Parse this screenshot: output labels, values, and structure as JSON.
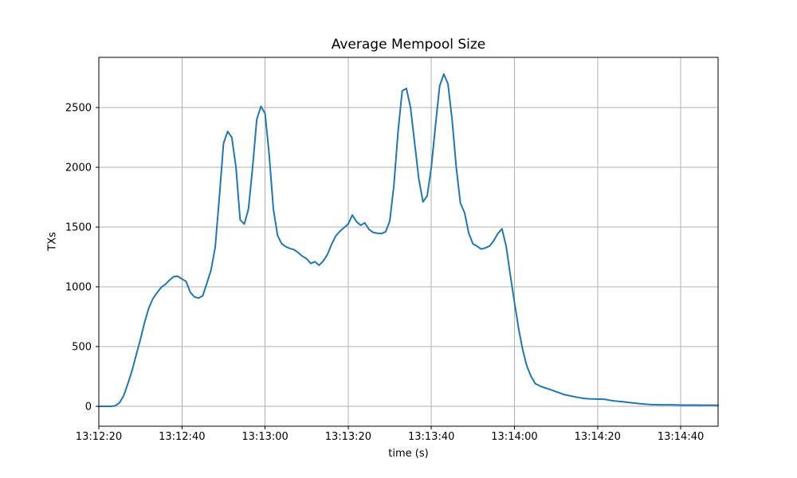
{
  "chart_data": {
    "type": "line",
    "title": "Average Mempool Size",
    "xlabel": "time (s)",
    "ylabel": "TXs",
    "grid": true,
    "legend": "none",
    "line_color": "#1f77b4",
    "grid_color": "#b0b0b0",
    "spine_color": "#000000",
    "x_start_label": "13:12:20",
    "x_interval_seconds": 1,
    "xlim_s": [
      0,
      149
    ],
    "ylim": [
      -167,
      2920
    ],
    "x_ticks": [
      {
        "offset_s": 0,
        "label": "13:12:20"
      },
      {
        "offset_s": 20,
        "label": "13:12:40"
      },
      {
        "offset_s": 40,
        "label": "13:13:00"
      },
      {
        "offset_s": 60,
        "label": "13:13:20"
      },
      {
        "offset_s": 80,
        "label": "13:13:40"
      },
      {
        "offset_s": 100,
        "label": "13:14:00"
      },
      {
        "offset_s": 120,
        "label": "13:14:20"
      },
      {
        "offset_s": 140,
        "label": "13:14:40"
      }
    ],
    "y_ticks": [
      {
        "value": 0,
        "label": "0"
      },
      {
        "value": 500,
        "label": "500"
      },
      {
        "value": 1000,
        "label": "1000"
      },
      {
        "value": 1500,
        "label": "1500"
      },
      {
        "value": 2000,
        "label": "2000"
      },
      {
        "value": 2500,
        "label": "2500"
      }
    ],
    "values": [
      0,
      0,
      0,
      0,
      5,
      30,
      90,
      190,
      300,
      430,
      560,
      700,
      820,
      900,
      950,
      995,
      1020,
      1055,
      1085,
      1088,
      1065,
      1045,
      955,
      915,
      905,
      925,
      1030,
      1140,
      1330,
      1750,
      2200,
      2300,
      2250,
      2000,
      1560,
      1525,
      1650,
      2000,
      2400,
      2510,
      2450,
      2100,
      1650,
      1430,
      1360,
      1335,
      1320,
      1310,
      1285,
      1255,
      1235,
      1195,
      1210,
      1180,
      1215,
      1270,
      1355,
      1425,
      1465,
      1495,
      1525,
      1600,
      1545,
      1515,
      1535,
      1480,
      1455,
      1448,
      1445,
      1460,
      1550,
      1850,
      2300,
      2640,
      2660,
      2500,
      2200,
      1900,
      1710,
      1760,
      2000,
      2350,
      2680,
      2780,
      2700,
      2400,
      2000,
      1700,
      1620,
      1450,
      1360,
      1340,
      1315,
      1325,
      1340,
      1385,
      1445,
      1485,
      1340,
      1100,
      870,
      650,
      470,
      335,
      250,
      190,
      172,
      158,
      147,
      135,
      122,
      110,
      97,
      90,
      83,
      76,
      70,
      65,
      62,
      61,
      60,
      60,
      57,
      50,
      45,
      41,
      38,
      34,
      30,
      26,
      22,
      19,
      16,
      14,
      13,
      12,
      12,
      12,
      12,
      11,
      10,
      10,
      10,
      10,
      10,
      9,
      9,
      9,
      9,
      8
    ]
  }
}
